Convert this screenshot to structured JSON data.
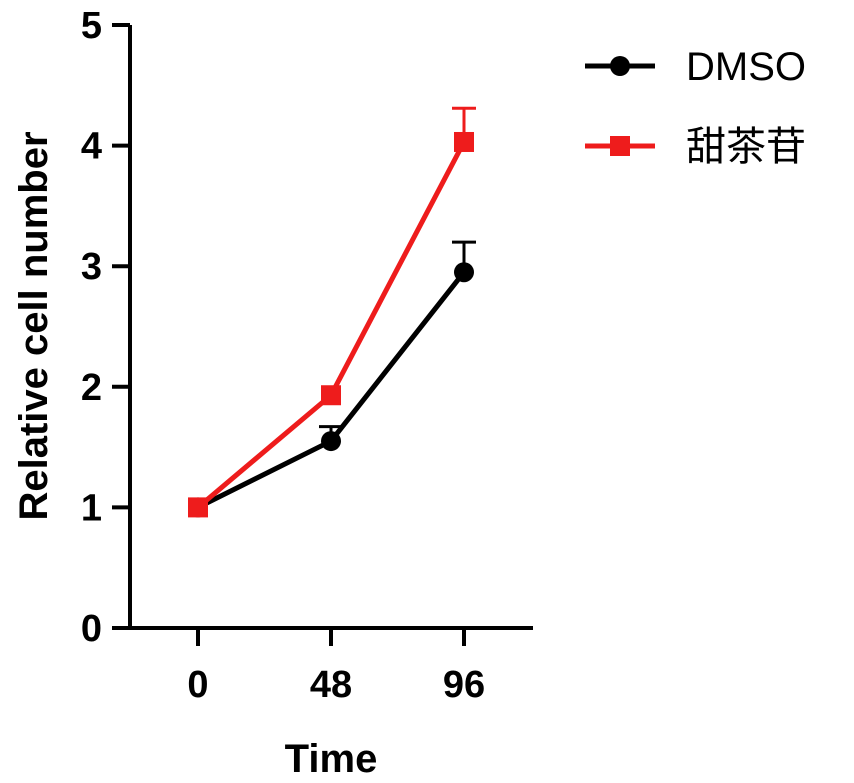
{
  "chart_data": {
    "type": "line",
    "title": "",
    "xlabel": "Time",
    "ylabel": "Relative cell number",
    "x": [
      0,
      48,
      96
    ],
    "x_tick_labels": [
      "0",
      "48",
      "96"
    ],
    "y_tick_labels": [
      "0",
      "1",
      "2",
      "3",
      "4",
      "5"
    ],
    "ylim": [
      0,
      5
    ],
    "grid": false,
    "legend_position": "top-right",
    "series": [
      {
        "name": "DMSO",
        "values": [
          1.0,
          1.55,
          2.95
        ],
        "error": [
          0.0,
          0.12,
          0.25
        ],
        "color": "#000000",
        "marker": "circle"
      },
      {
        "name": "甜茶苷",
        "values": [
          1.0,
          1.93,
          4.03
        ],
        "error": [
          0.0,
          0.0,
          0.28
        ],
        "color": "#ee1c1c",
        "marker": "square"
      }
    ]
  }
}
